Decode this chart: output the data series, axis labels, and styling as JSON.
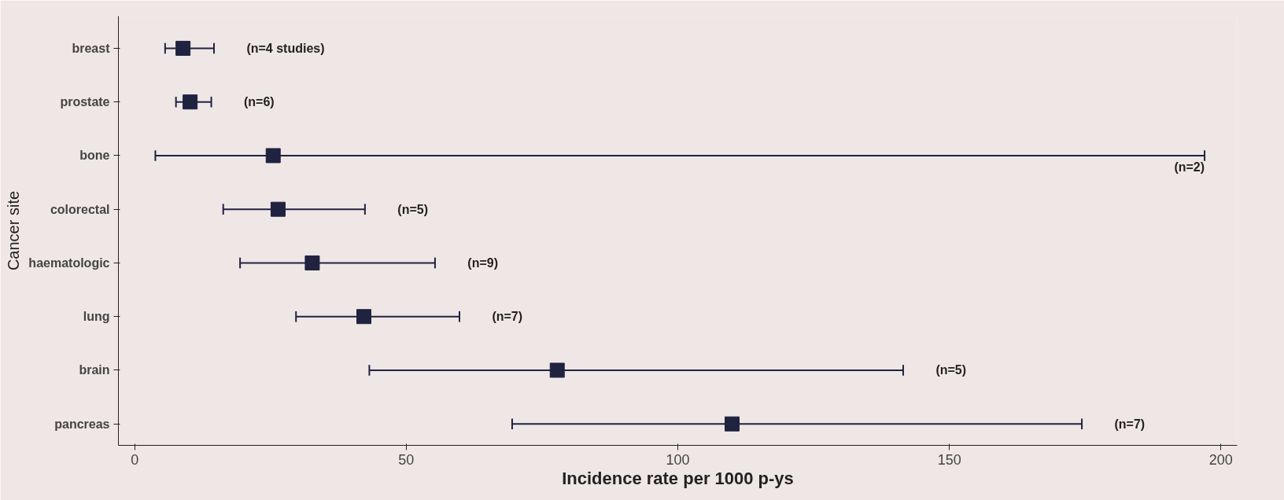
{
  "chart_data": {
    "type": "scatter",
    "orientation": "horizontal",
    "xlabel": "Incidence rate per 1000 p-ys",
    "ylabel": "Cancer site",
    "categories": [
      "breast",
      "prostate",
      "bone",
      "colorectal",
      "haematologic",
      "lung",
      "brain",
      "pancreas"
    ],
    "values": [
      8.9,
      10.2,
      25.5,
      26.4,
      32.7,
      42.2,
      77.8,
      110
    ],
    "errors": [
      [
        5.6,
        14.6
      ],
      [
        7.6,
        14.1
      ],
      [
        3.8,
        197
      ],
      [
        16.3,
        42.4
      ],
      [
        19.4,
        55.3
      ],
      [
        29.7,
        59.8
      ],
      [
        43.2,
        141.5
      ],
      [
        69.5,
        174.4
      ]
    ],
    "color": "#1f2340",
    "marker": "square",
    "xlim": [
      -3,
      203
    ],
    "xticks": [
      0,
      50,
      100,
      150,
      200
    ],
    "grid": false,
    "annotations": [
      "(n=4 studies)",
      "(n=6)",
      "(n=2)",
      "(n=5)",
      "(n=9)",
      "(n=7)",
      "(n=5)",
      "(n=7)"
    ]
  }
}
